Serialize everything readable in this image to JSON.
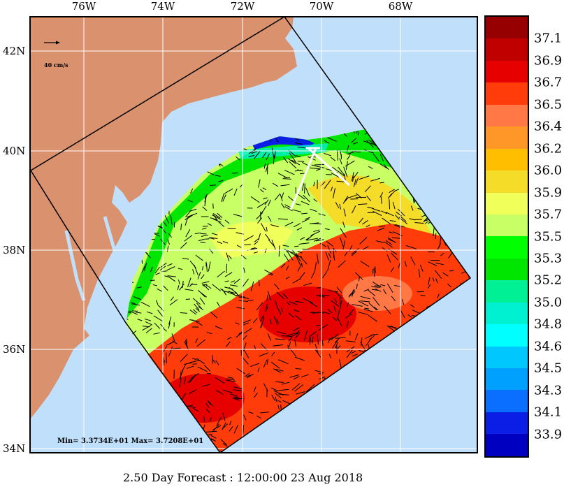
{
  "axes": {
    "lon_labels": [
      "76W",
      "74W",
      "72W",
      "70W",
      "68W"
    ],
    "lat_labels": [
      "42N",
      "40N",
      "38N",
      "36N",
      "34N"
    ]
  },
  "scale": {
    "label": "40 cm/s"
  },
  "stats": {
    "minmax": "Min= 3.3734E+01  Max= 3.7208E+01"
  },
  "title": "2.50 Day Forecast : 12:00:00  23 Aug 2018",
  "colorbar": {
    "labels": [
      "37.1",
      "36.9",
      "36.7",
      "36.5",
      "36.4",
      "36.2",
      "36.0",
      "35.9",
      "35.7",
      "35.5",
      "35.3",
      "35.2",
      "35.0",
      "34.8",
      "34.6",
      "34.5",
      "34.3",
      "34.1",
      "33.9"
    ],
    "colors": [
      "#960000",
      "#c00000",
      "#e60000",
      "#ff3c0a",
      "#ff7846",
      "#ff9628",
      "#ffbe00",
      "#f5dc28",
      "#f0ff5a",
      "#c8ff64",
      "#00ff00",
      "#00e600",
      "#00f096",
      "#00f0d2",
      "#00ffff",
      "#00c8ff",
      "#00a0ff",
      "#0a6eff",
      "#0a1ee6",
      "#0000c0"
    ]
  },
  "colors": {
    "land": "#d9916e",
    "ocean": "#bfdffb",
    "grid": "#ffffff"
  }
}
